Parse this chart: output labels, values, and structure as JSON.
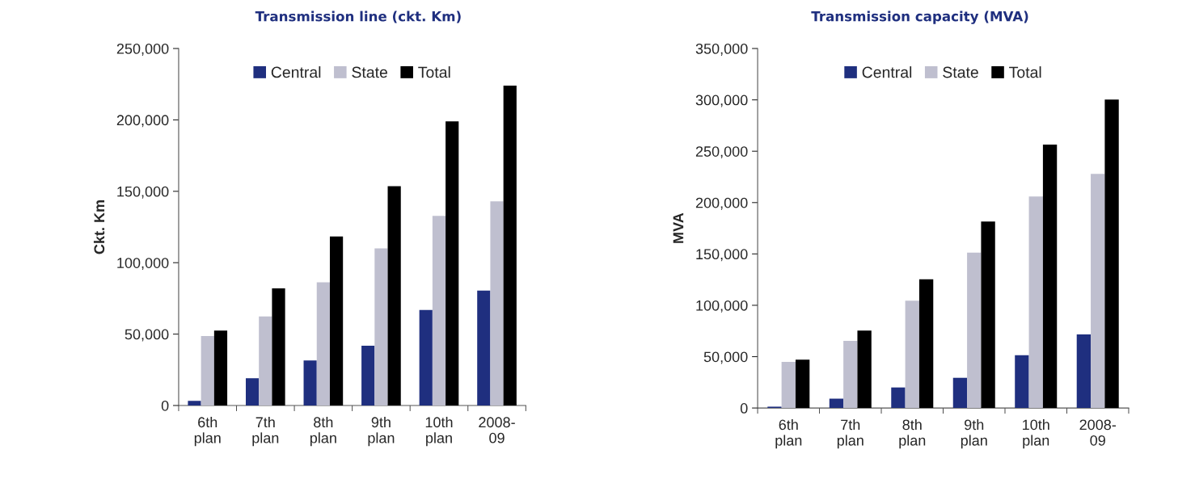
{
  "chart_data": [
    {
      "type": "bar",
      "title": "Transmission line (ckt. Km)",
      "ylabel": "Ckt. Km",
      "categories": [
        "6th\nplan",
        "7th\nplan",
        "8th\nplan",
        "9th\nplan",
        "10th\nplan",
        "2008-\n09"
      ],
      "series": [
        {
          "name": "Central",
          "color": "#1f2f7f",
          "values": [
            3200,
            19100,
            31600,
            41900,
            66900,
            80500
          ]
        },
        {
          "name": "State",
          "color": "#bfbfcf",
          "values": [
            48700,
            62300,
            86200,
            110000,
            132800,
            143000
          ]
        },
        {
          "name": "Total",
          "color": "#000000",
          "values": [
            52500,
            82000,
            118400,
            153600,
            199000,
            224000
          ]
        }
      ],
      "ylim": [
        0,
        250000
      ],
      "yticks": [
        {
          "value": 0,
          "label": "0"
        },
        {
          "value": 50000,
          "label": "50,000"
        },
        {
          "value": 100000,
          "label": "100,000"
        },
        {
          "value": 150000,
          "label": "150,000"
        },
        {
          "value": 200000,
          "label": "200,000"
        },
        {
          "value": 250000,
          "label": "250,000"
        }
      ],
      "legend": "top",
      "grid": false
    },
    {
      "type": "bar",
      "title": "Transmission capacity (MVA)",
      "ylabel": "MVA",
      "categories": [
        "6th\nplan",
        "7th\nplan",
        "8th\nplan",
        "9th\nplan",
        "10th\nplan",
        "2008-\n09"
      ],
      "series": [
        {
          "name": "Central",
          "color": "#1f2f7f",
          "values": [
            1300,
            9100,
            20000,
            29400,
            51300,
            71600
          ]
        },
        {
          "name": "State",
          "color": "#bfbfcf",
          "values": [
            45000,
            65400,
            104400,
            151300,
            206000,
            227900
          ]
        },
        {
          "name": "Total",
          "color": "#000000",
          "values": [
            47100,
            75300,
            125300,
            181500,
            256500,
            300200
          ]
        }
      ],
      "ylim": [
        0,
        350000
      ],
      "yticks": [
        {
          "value": 0,
          "label": "0"
        },
        {
          "value": 50000,
          "label": "50,000"
        },
        {
          "value": 100000,
          "label": "100,000"
        },
        {
          "value": 150000,
          "label": "150,000"
        },
        {
          "value": 200000,
          "label": "200,000"
        },
        {
          "value": 250000,
          "label": "250,000"
        },
        {
          "value": 300000,
          "label": "300,000"
        },
        {
          "value": 350000,
          "label": "350,000"
        }
      ],
      "legend": "top",
      "grid": false
    }
  ]
}
